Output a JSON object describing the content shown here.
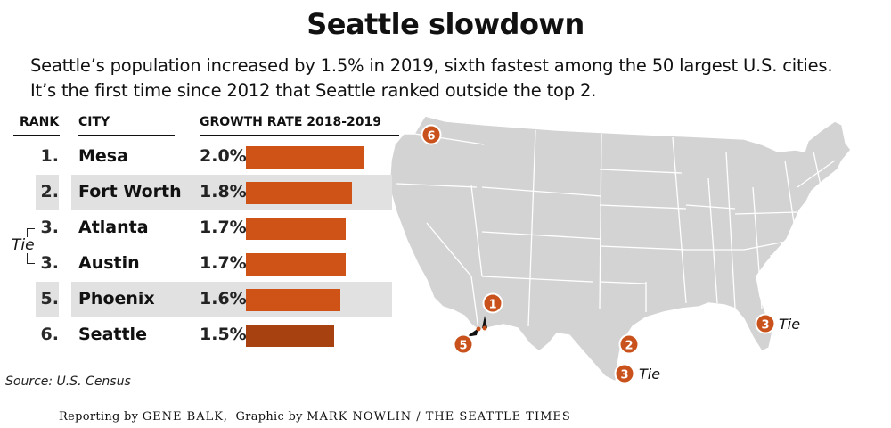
{
  "title": "Seattle slowdown",
  "subtitle_lines": [
    "Seattle’s population increased by 1.5% in 2019, sixth fastest among the 50 largest U.S. cities.",
    "It’s the first time since 2012 that Seattle ranked outside the top 2."
  ],
  "colors": {
    "bar": "#cf5216",
    "bar_highlight": "#a7410f",
    "band": "#e1e1e1",
    "marker": "#c9521c",
    "map_land": "#d3d3d3"
  },
  "chart_data": {
    "type": "bar",
    "orientation": "horizontal",
    "column_headers": {
      "rank": "RANK",
      "city": "CITY",
      "value": "GROWTH RATE 2018-2019"
    },
    "categories": [
      "Mesa",
      "Fort Worth",
      "Atlanta",
      "Austin",
      "Phoenix",
      "Seattle"
    ],
    "ranks": [
      "1.",
      "2.",
      "3.",
      "3.",
      "5.",
      "6."
    ],
    "values": [
      2.0,
      1.8,
      1.7,
      1.7,
      1.6,
      1.5
    ],
    "value_labels": [
      "2.0%",
      "1.8%",
      "1.7%",
      "1.7%",
      "1.6%",
      "1.5%"
    ],
    "highlight": "Seattle",
    "xlim": [
      0,
      2.0
    ],
    "unit": "%",
    "tie_label": "Tie"
  },
  "map": {
    "markers": [
      {
        "label": "6",
        "city": "Seattle"
      },
      {
        "label": "1",
        "city": "Mesa"
      },
      {
        "label": "5",
        "city": "Phoenix"
      },
      {
        "label": "2",
        "city": "Fort Worth"
      },
      {
        "label": "3",
        "city": "Austin",
        "note": "Tie"
      },
      {
        "label": "3",
        "city": "Atlanta",
        "note": "Tie"
      }
    ]
  },
  "source": "Source: U.S. Census",
  "credit": {
    "reporting_prefix": "Reporting by",
    "reporter": "GENE BALK,",
    "graphic_prefix": "Graphic by",
    "graphic": "MARK NOWLIN / THE SEATTLE TIMES"
  }
}
